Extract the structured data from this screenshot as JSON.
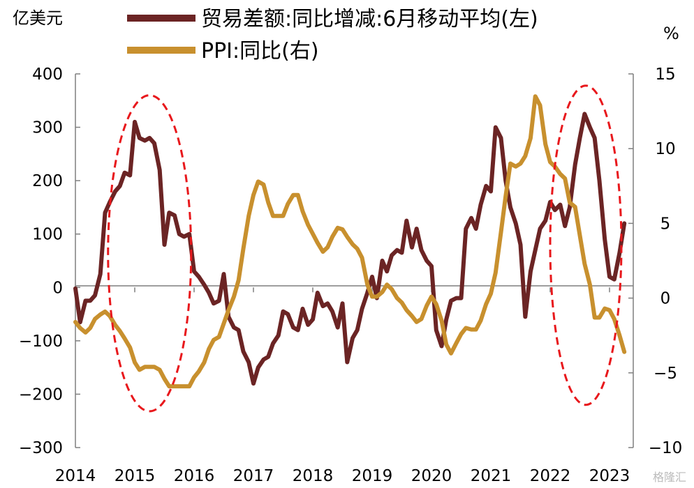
{
  "chart_data": {
    "type": "line",
    "title": "",
    "y_left": {
      "unit": "亿美元",
      "ylim": [
        -300,
        400
      ],
      "ticks": [
        -300,
        -200,
        -100,
        0,
        100,
        200,
        300,
        400
      ],
      "tick_labels": [
        "−300",
        "−200",
        "−100",
        "0",
        "100",
        "200",
        "300",
        "400"
      ]
    },
    "y_right": {
      "unit": "%",
      "ylim": [
        -10,
        15
      ],
      "ticks": [
        -10,
        -5,
        0,
        5,
        10,
        15
      ],
      "tick_labels": [
        "−10",
        "−5",
        "0",
        "5",
        "10",
        "15"
      ]
    },
    "x": {
      "xlim": [
        2014.0,
        2023.4
      ],
      "ticks": [
        2014,
        2015,
        2016,
        2017,
        2018,
        2019,
        2020,
        2021,
        2022,
        2023
      ],
      "tick_labels": [
        "2014",
        "2015",
        "2016",
        "2017",
        "2018",
        "2019",
        "2020",
        "2021",
        "2022",
        "2023"
      ]
    },
    "grid": false,
    "legend_position": "top",
    "series": [
      {
        "name": "贸易差额:同比增减:6月移动平均(左)",
        "axis": "left",
        "color": "#6b2424",
        "points": [
          [
            2014.0,
            -2
          ],
          [
            2014.08,
            -65
          ],
          [
            2014.17,
            -25
          ],
          [
            2014.25,
            -25
          ],
          [
            2014.33,
            -15
          ],
          [
            2014.42,
            25
          ],
          [
            2014.5,
            140
          ],
          [
            2014.58,
            160
          ],
          [
            2014.67,
            180
          ],
          [
            2014.75,
            190
          ],
          [
            2014.83,
            215
          ],
          [
            2014.92,
            210
          ],
          [
            2015.0,
            310
          ],
          [
            2015.08,
            280
          ],
          [
            2015.17,
            275
          ],
          [
            2015.25,
            280
          ],
          [
            2015.33,
            270
          ],
          [
            2015.42,
            220
          ],
          [
            2015.5,
            80
          ],
          [
            2015.58,
            140
          ],
          [
            2015.67,
            135
          ],
          [
            2015.75,
            100
          ],
          [
            2015.83,
            95
          ],
          [
            2015.92,
            100
          ],
          [
            2016.0,
            30
          ],
          [
            2016.08,
            20
          ],
          [
            2016.17,
            5
          ],
          [
            2016.25,
            -10
          ],
          [
            2016.33,
            -30
          ],
          [
            2016.42,
            -25
          ],
          [
            2016.5,
            25
          ],
          [
            2016.58,
            -55
          ],
          [
            2016.67,
            -75
          ],
          [
            2016.75,
            -80
          ],
          [
            2016.83,
            -120
          ],
          [
            2016.92,
            -140
          ],
          [
            2017.0,
            -180
          ],
          [
            2017.08,
            -150
          ],
          [
            2017.17,
            -135
          ],
          [
            2017.25,
            -130
          ],
          [
            2017.33,
            -105
          ],
          [
            2017.42,
            -90
          ],
          [
            2017.5,
            -45
          ],
          [
            2017.58,
            -50
          ],
          [
            2017.67,
            -75
          ],
          [
            2017.75,
            -80
          ],
          [
            2017.83,
            -40
          ],
          [
            2017.92,
            -70
          ],
          [
            2018.0,
            -60
          ],
          [
            2018.08,
            -10
          ],
          [
            2018.17,
            -35
          ],
          [
            2018.25,
            -30
          ],
          [
            2018.33,
            -45
          ],
          [
            2018.42,
            -75
          ],
          [
            2018.5,
            -30
          ],
          [
            2018.58,
            -140
          ],
          [
            2018.67,
            -95
          ],
          [
            2018.75,
            -80
          ],
          [
            2018.83,
            -40
          ],
          [
            2018.92,
            -10
          ],
          [
            2019.0,
            20
          ],
          [
            2019.08,
            -20
          ],
          [
            2019.17,
            50
          ],
          [
            2019.25,
            30
          ],
          [
            2019.33,
            60
          ],
          [
            2019.42,
            70
          ],
          [
            2019.5,
            65
          ],
          [
            2019.58,
            125
          ],
          [
            2019.67,
            75
          ],
          [
            2019.75,
            110
          ],
          [
            2019.83,
            70
          ],
          [
            2019.92,
            50
          ],
          [
            2020.0,
            40
          ],
          [
            2020.08,
            -80
          ],
          [
            2020.17,
            -110
          ],
          [
            2020.25,
            -60
          ],
          [
            2020.33,
            -25
          ],
          [
            2020.42,
            -20
          ],
          [
            2020.5,
            -20
          ],
          [
            2020.58,
            110
          ],
          [
            2020.67,
            130
          ],
          [
            2020.75,
            110
          ],
          [
            2020.83,
            155
          ],
          [
            2020.92,
            190
          ],
          [
            2021.0,
            180
          ],
          [
            2021.08,
            300
          ],
          [
            2021.17,
            280
          ],
          [
            2021.25,
            200
          ],
          [
            2021.33,
            150
          ],
          [
            2021.42,
            120
          ],
          [
            2021.5,
            80
          ],
          [
            2021.58,
            -55
          ],
          [
            2021.67,
            30
          ],
          [
            2021.75,
            70
          ],
          [
            2021.83,
            110
          ],
          [
            2021.92,
            125
          ],
          [
            2022.0,
            160
          ],
          [
            2022.08,
            145
          ],
          [
            2022.17,
            155
          ],
          [
            2022.25,
            115
          ],
          [
            2022.33,
            150
          ],
          [
            2022.42,
            230
          ],
          [
            2022.5,
            280
          ],
          [
            2022.58,
            325
          ],
          [
            2022.67,
            300
          ],
          [
            2022.75,
            280
          ],
          [
            2022.83,
            200
          ],
          [
            2022.92,
            90
          ],
          [
            2023.0,
            20
          ],
          [
            2023.08,
            15
          ],
          [
            2023.17,
            65
          ],
          [
            2023.25,
            120
          ]
        ]
      },
      {
        "name": "PPI:同比(右)",
        "axis": "right",
        "color": "#c8902e",
        "points": [
          [
            2014.0,
            -1.6
          ],
          [
            2014.08,
            -2.0
          ],
          [
            2014.17,
            -2.3
          ],
          [
            2014.25,
            -2.0
          ],
          [
            2014.33,
            -1.4
          ],
          [
            2014.42,
            -1.1
          ],
          [
            2014.5,
            -0.9
          ],
          [
            2014.58,
            -1.2
          ],
          [
            2014.67,
            -1.8
          ],
          [
            2014.75,
            -2.2
          ],
          [
            2014.83,
            -2.7
          ],
          [
            2014.92,
            -3.3
          ],
          [
            2015.0,
            -4.3
          ],
          [
            2015.08,
            -4.8
          ],
          [
            2015.17,
            -4.6
          ],
          [
            2015.25,
            -4.6
          ],
          [
            2015.33,
            -4.6
          ],
          [
            2015.42,
            -4.8
          ],
          [
            2015.5,
            -5.4
          ],
          [
            2015.58,
            -5.9
          ],
          [
            2015.67,
            -5.9
          ],
          [
            2015.75,
            -5.9
          ],
          [
            2015.83,
            -5.9
          ],
          [
            2015.92,
            -5.9
          ],
          [
            2016.0,
            -5.3
          ],
          [
            2016.08,
            -4.9
          ],
          [
            2016.17,
            -4.3
          ],
          [
            2016.25,
            -3.4
          ],
          [
            2016.33,
            -2.8
          ],
          [
            2016.42,
            -2.6
          ],
          [
            2016.5,
            -1.7
          ],
          [
            2016.58,
            -0.8
          ],
          [
            2016.67,
            0.1
          ],
          [
            2016.75,
            1.2
          ],
          [
            2016.83,
            3.3
          ],
          [
            2016.92,
            5.5
          ],
          [
            2017.0,
            6.9
          ],
          [
            2017.08,
            7.8
          ],
          [
            2017.17,
            7.6
          ],
          [
            2017.25,
            6.4
          ],
          [
            2017.33,
            5.5
          ],
          [
            2017.42,
            5.5
          ],
          [
            2017.5,
            5.5
          ],
          [
            2017.58,
            6.3
          ],
          [
            2017.67,
            6.9
          ],
          [
            2017.75,
            6.9
          ],
          [
            2017.83,
            5.8
          ],
          [
            2017.92,
            4.9
          ],
          [
            2018.0,
            4.3
          ],
          [
            2018.08,
            3.7
          ],
          [
            2018.17,
            3.1
          ],
          [
            2018.25,
            3.4
          ],
          [
            2018.33,
            4.1
          ],
          [
            2018.42,
            4.7
          ],
          [
            2018.5,
            4.6
          ],
          [
            2018.58,
            4.1
          ],
          [
            2018.67,
            3.6
          ],
          [
            2018.75,
            3.3
          ],
          [
            2018.83,
            2.7
          ],
          [
            2018.92,
            0.9
          ],
          [
            2019.0,
            0.1
          ],
          [
            2019.08,
            0.1
          ],
          [
            2019.17,
            0.4
          ],
          [
            2019.25,
            0.9
          ],
          [
            2019.33,
            0.6
          ],
          [
            2019.42,
            0.0
          ],
          [
            2019.5,
            -0.3
          ],
          [
            2019.58,
            -0.8
          ],
          [
            2019.67,
            -1.2
          ],
          [
            2019.75,
            -1.6
          ],
          [
            2019.83,
            -1.4
          ],
          [
            2019.92,
            -0.5
          ],
          [
            2020.0,
            0.1
          ],
          [
            2020.08,
            -0.4
          ],
          [
            2020.17,
            -1.5
          ],
          [
            2020.25,
            -3.1
          ],
          [
            2020.33,
            -3.7
          ],
          [
            2020.42,
            -3.0
          ],
          [
            2020.5,
            -2.4
          ],
          [
            2020.58,
            -2.0
          ],
          [
            2020.67,
            -2.1
          ],
          [
            2020.75,
            -2.1
          ],
          [
            2020.83,
            -1.5
          ],
          [
            2020.92,
            -0.4
          ],
          [
            2021.0,
            0.3
          ],
          [
            2021.08,
            1.7
          ],
          [
            2021.17,
            4.4
          ],
          [
            2021.25,
            6.8
          ],
          [
            2021.33,
            9.0
          ],
          [
            2021.42,
            8.8
          ],
          [
            2021.5,
            9.0
          ],
          [
            2021.58,
            9.5
          ],
          [
            2021.67,
            10.7
          ],
          [
            2021.75,
            13.5
          ],
          [
            2021.83,
            12.9
          ],
          [
            2021.92,
            10.3
          ],
          [
            2022.0,
            9.1
          ],
          [
            2022.08,
            8.8
          ],
          [
            2022.17,
            8.3
          ],
          [
            2022.25,
            8.0
          ],
          [
            2022.33,
            6.4
          ],
          [
            2022.42,
            6.1
          ],
          [
            2022.5,
            4.2
          ],
          [
            2022.58,
            2.3
          ],
          [
            2022.67,
            0.9
          ],
          [
            2022.75,
            -1.3
          ],
          [
            2022.83,
            -1.3
          ],
          [
            2022.92,
            -0.7
          ],
          [
            2023.0,
            -0.8
          ],
          [
            2023.08,
            -1.4
          ],
          [
            2023.17,
            -2.5
          ],
          [
            2023.25,
            -3.6
          ]
        ]
      }
    ]
  },
  "legend": [
    {
      "label": "贸易差额:同比增减:6月移动平均(左)",
      "color": "#6b2424"
    },
    {
      "label": "PPI:同比(右)",
      "color": "#c8902e"
    }
  ],
  "highlights": [
    {
      "shape": "dashed-ellipse",
      "color": "#e8181c",
      "x_range": [
        2014.55,
        2015.95
      ],
      "y_left_range": [
        -232,
        360
      ]
    },
    {
      "shape": "dashed-ellipse",
      "color": "#e8181c",
      "x_range": [
        2022.0,
        2023.2
      ],
      "y_left_range": [
        -220,
        378
      ]
    }
  ],
  "watermark": "格隆汇"
}
